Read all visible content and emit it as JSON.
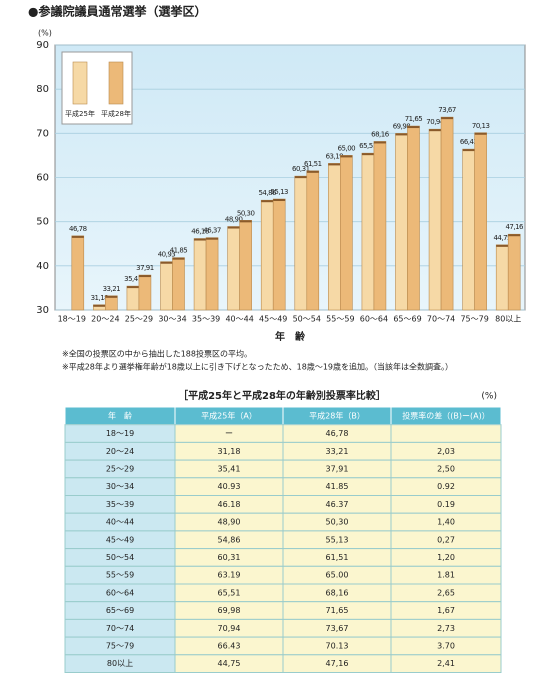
{
  "title": "●参議院議員通常選挙（選挙区）",
  "chart_data": {
    "type": "bar",
    "y_unit": "(%)",
    "x_label": "年　齢",
    "categories": [
      "18〜19",
      "20〜24",
      "25〜29",
      "30〜34",
      "35〜39",
      "40〜44",
      "45〜49",
      "50〜54",
      "55〜59",
      "60〜64",
      "65〜69",
      "70〜74",
      "75〜79",
      "80以上"
    ],
    "series": [
      {
        "name": "平成25年",
        "color": "#f6d9a6",
        "values": [
          null,
          31.18,
          35.41,
          40.93,
          46.18,
          48.9,
          54.86,
          60.31,
          63.19,
          65.51,
          69.98,
          70.94,
          66.43,
          44.75
        ],
        "value_labels": [
          null,
          "31,18",
          "35,41",
          "40,93",
          "46,18",
          "48,90",
          "54,86",
          "60,31",
          "63,19",
          "65,51",
          "69,98",
          "70,94",
          "66,43",
          "44,75"
        ]
      },
      {
        "name": "平成28年",
        "color": "#ecb978",
        "values": [
          46.78,
          33.21,
          37.91,
          41.85,
          46.37,
          50.3,
          55.13,
          61.51,
          65.0,
          68.16,
          71.65,
          73.67,
          70.13,
          47.16
        ],
        "value_labels": [
          "46,78",
          "33,21",
          "37,91",
          "41,85",
          "46,37",
          "50,30",
          "55,13",
          "61,51",
          "65,00",
          "68,16",
          "71,65",
          "73,67",
          "70,13",
          "47,16"
        ]
      }
    ],
    "ylim": [
      30,
      90
    ],
    "yticks": [
      30,
      40,
      50,
      60,
      70,
      80,
      90
    ],
    "grid": true,
    "legend": "top-left"
  },
  "notes": [
    "※全国の投票区の中から抽出した188投票区の平均。",
    "※平成28年より選挙権年齢が18歳以上に引き下げとなったため、18歳〜19歳を追加。（当該年は全数調査。）"
  ],
  "table": {
    "title": "［平成25年と平成28年の年齢別投票率比較］",
    "unit": "(%)",
    "header": [
      "年　齢",
      "平成25年（A）",
      "平成28年（B）",
      "投票率の差（(B)ー(A)）"
    ],
    "rows": [
      [
        "18〜19",
        "ー",
        "46,78",
        null
      ],
      [
        "20〜24",
        "31,18",
        "33,21",
        "2,03"
      ],
      [
        "25〜29",
        "35,41",
        "37,91",
        "2,50"
      ],
      [
        "30〜34",
        "40.93",
        "41.85",
        "0.92"
      ],
      [
        "35〜39",
        "46.18",
        "46.37",
        "0.19"
      ],
      [
        "40〜44",
        "48,90",
        "50,30",
        "1,40"
      ],
      [
        "45〜49",
        "54,86",
        "55,13",
        "0,27"
      ],
      [
        "50〜54",
        "60,31",
        "61,51",
        "1,20"
      ],
      [
        "55〜59",
        "63.19",
        "65.00",
        "1.81"
      ],
      [
        "60〜64",
        "65,51",
        "68,16",
        "2,65"
      ],
      [
        "65〜69",
        "69,98",
        "71,65",
        "1,67"
      ],
      [
        "70〜74",
        "70,94",
        "73,67",
        "2,73"
      ],
      [
        "75〜79",
        "66.43",
        "70.13",
        "3.70"
      ],
      [
        "80以上",
        "44,75",
        "47,16",
        "2,41"
      ]
    ]
  }
}
